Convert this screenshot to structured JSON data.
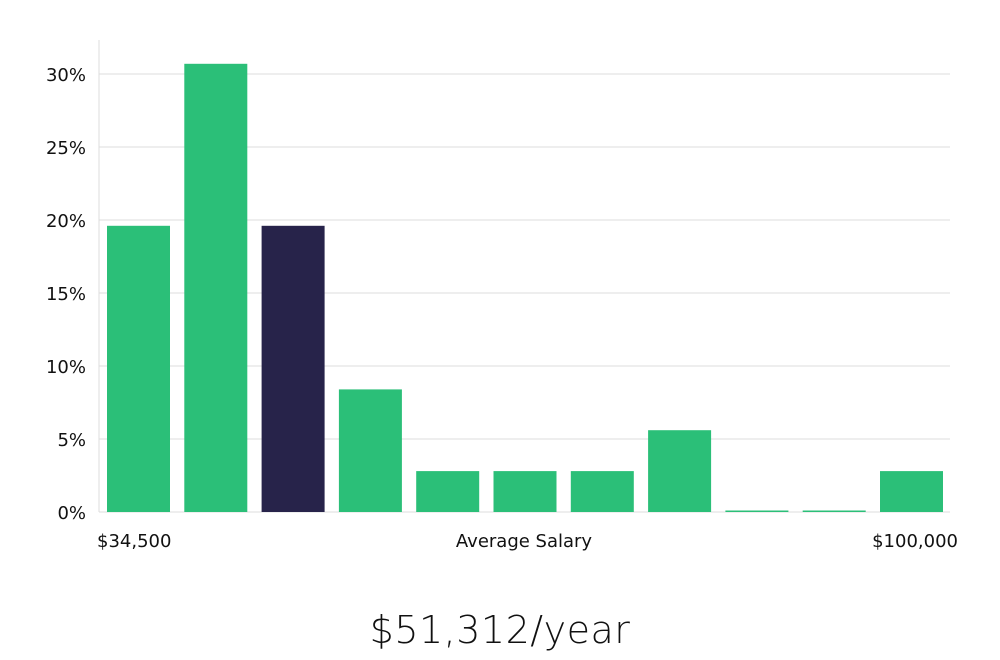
{
  "chart_data": {
    "type": "bar",
    "title": "",
    "xlabel": "Average Salary",
    "ylabel": "",
    "x_start_label": "$34,500",
    "x_end_label": "$100,000",
    "y_ticks": [
      "0%",
      "5%",
      "10%",
      "15%",
      "20%",
      "25%",
      "30%"
    ],
    "ylim": [
      0,
      32
    ],
    "grid": true,
    "values": [
      19.6,
      30.7,
      19.6,
      8.4,
      2.8,
      2.8,
      2.8,
      5.6,
      0.1,
      0.1,
      2.8
    ],
    "highlight_index": 2,
    "colors": {
      "bar": "#2bbf78",
      "highlight": "#27234a",
      "grid": "#dcdcdc"
    }
  },
  "summary": {
    "salary_text": "$51,312/year"
  }
}
